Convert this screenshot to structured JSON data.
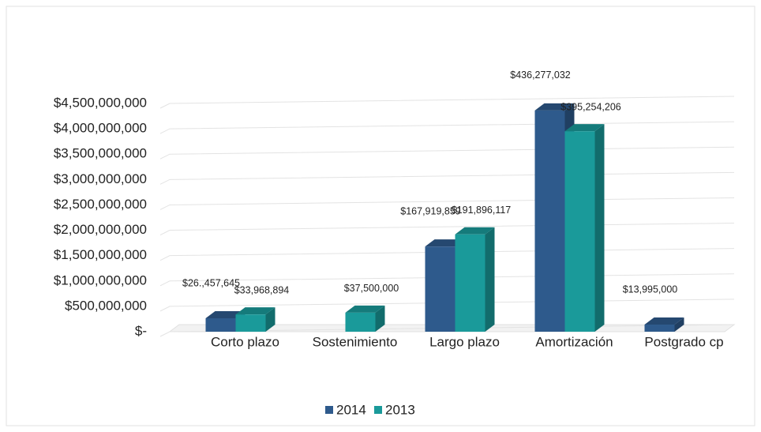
{
  "chart_data": {
    "type": "bar3d",
    "categories": [
      "Corto plazo",
      "Sostenimiento",
      "Largo plazo",
      "Amortización",
      "Postgrado cp"
    ],
    "series": [
      {
        "name": "2014",
        "color": "#2e5a8c",
        "values": [
          264576450,
          null,
          1679198590,
          4362770320,
          139950000
        ],
        "value_labels": [
          "$26.,457,645",
          null,
          "$167,919,859",
          "$436,277,032",
          "$13,995,000"
        ]
      },
      {
        "name": "2013",
        "color": "#1a9a9a",
        "values": [
          339688940,
          375000000,
          1918961170,
          3952542060,
          null
        ],
        "value_labels": [
          "$33,968,894",
          "$37,500,000",
          "$191,896,117",
          "$395,254,206",
          null
        ]
      }
    ],
    "ylim": [
      0,
      4500000000
    ],
    "yticks": [
      {
        "value": 0,
        "label": "$-"
      },
      {
        "value": 500000000,
        "label": "$500,000,000"
      },
      {
        "value": 1000000000,
        "label": "$1,000,000,000"
      },
      {
        "value": 1500000000,
        "label": "$1,500,000,000"
      },
      {
        "value": 2000000000,
        "label": "$2,000,000,000"
      },
      {
        "value": 2500000000,
        "label": "$2,500,000,000"
      },
      {
        "value": 3000000000,
        "label": "$3,000,000,000"
      },
      {
        "value": 3500000000,
        "label": "$3,500,000,000"
      },
      {
        "value": 4000000000,
        "label": "$4,000,000,000"
      },
      {
        "value": 4500000000,
        "label": "$4,500,000,000"
      }
    ],
    "grid": true,
    "legend": "bottom"
  }
}
